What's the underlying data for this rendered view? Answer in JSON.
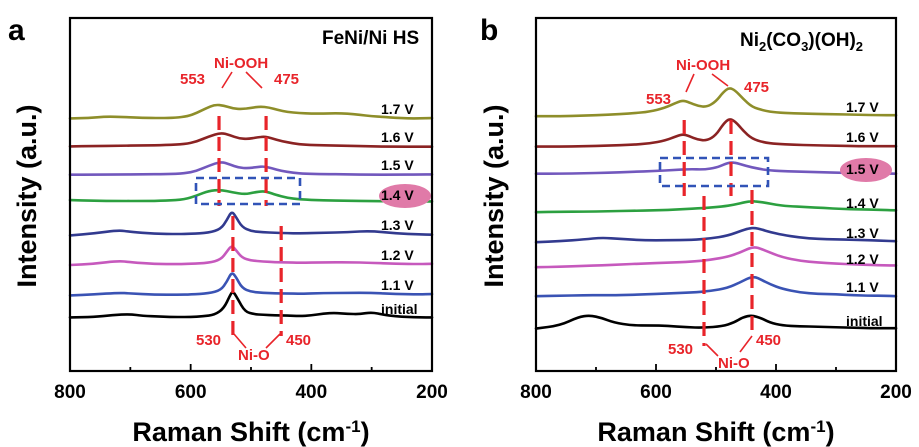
{
  "chart_data": [
    {
      "type": "line",
      "panel_label": "a",
      "title": "FeNi/Ni HS",
      "xlabel": "Raman Shift (cm",
      "xlabel_sup": "-1",
      "xlabel_end": ")",
      "ylabel": "Intensity (a.u.)",
      "xlim": [
        800,
        200
      ],
      "xticks": [
        800,
        600,
        400,
        200
      ],
      "series": [
        {
          "name": "initial",
          "color": "#000000",
          "x": [
            800,
            760,
            730,
            700,
            680,
            650,
            620,
            600,
            580,
            560,
            545,
            535,
            530,
            522,
            510,
            495,
            480,
            460,
            440,
            420,
            400,
            380,
            360,
            340,
            320,
            300,
            280,
            260,
            240,
            220,
            200
          ],
          "y": [
            0.2,
            0.3,
            0.9,
            1.2,
            0.7,
            0.4,
            0.3,
            0.3,
            0.5,
            1.0,
            3.0,
            7.0,
            8.5,
            6.0,
            2.0,
            1.2,
            1.0,
            0.8,
            0.8,
            0.6,
            0.8,
            1.4,
            1.6,
            1.3,
            1.2,
            1.8,
            1.0,
            0.5,
            0.3,
            0.2,
            0.2
          ]
        },
        {
          "name": "1.1 V",
          "color": "#3a53b4",
          "x": [
            800,
            760,
            720,
            700,
            660,
            620,
            600,
            570,
            550,
            540,
            532,
            525,
            515,
            500,
            480,
            460,
            440,
            420,
            380,
            340,
            300,
            260,
            220,
            200
          ],
          "y": [
            0.2,
            0.5,
            1.0,
            0.8,
            0.4,
            0.4,
            0.5,
            0.8,
            1.8,
            4.5,
            7.5,
            6.0,
            2.5,
            1.3,
            1.0,
            0.8,
            0.8,
            0.7,
            0.9,
            1.0,
            1.0,
            0.6,
            0.5,
            0.6
          ]
        },
        {
          "name": "1.2 V",
          "color": "#c659bd",
          "x": [
            800,
            760,
            720,
            700,
            660,
            620,
            600,
            570,
            550,
            540,
            532,
            525,
            515,
            500,
            480,
            460,
            440,
            420,
            380,
            340,
            300,
            260,
            220,
            200
          ],
          "y": [
            0.3,
            0.7,
            1.6,
            1.2,
            0.6,
            0.6,
            0.7,
            1.0,
            2.0,
            4.5,
            6.5,
            5.0,
            2.6,
            1.7,
            1.4,
            1.2,
            1.1,
            1.0,
            1.1,
            1.2,
            1.0,
            0.7,
            0.6,
            0.7
          ]
        },
        {
          "name": "1.3 V",
          "color": "#323a8f",
          "x": [
            800,
            760,
            720,
            700,
            660,
            620,
            600,
            570,
            550,
            540,
            532,
            525,
            515,
            500,
            480,
            460,
            440,
            420,
            380,
            340,
            300,
            260,
            220,
            200
          ],
          "y": [
            0.2,
            0.8,
            1.8,
            1.3,
            0.7,
            0.6,
            0.7,
            1.0,
            2.2,
            5.0,
            7.8,
            6.0,
            2.8,
            1.5,
            1.2,
            1.0,
            0.9,
            0.8,
            1.0,
            1.2,
            1.6,
            0.8,
            0.5,
            0.4
          ]
        },
        {
          "name": "1.4 V",
          "color": "#2ca040",
          "x": [
            800,
            760,
            720,
            680,
            640,
            610,
            590,
            570,
            550,
            530,
            510,
            495,
            480,
            470,
            460,
            440,
            420,
            380,
            340,
            300,
            260,
            220,
            200
          ],
          "y": [
            0.6,
            0.4,
            0.3,
            0.3,
            0.4,
            0.8,
            2.0,
            3.5,
            3.8,
            3.0,
            2.4,
            3.0,
            3.4,
            3.0,
            2.3,
            1.3,
            0.8,
            0.5,
            0.4,
            0.3,
            0.2,
            0.2,
            0.2
          ]
        },
        {
          "name": "1.5 V",
          "color": "#7258bd",
          "x": [
            800,
            760,
            720,
            680,
            640,
            610,
            590,
            570,
            550,
            535,
            520,
            505,
            490,
            478,
            465,
            450,
            430,
            410,
            380,
            340,
            300,
            260,
            220,
            200
          ],
          "y": [
            0.4,
            0.4,
            0.5,
            0.5,
            0.6,
            0.8,
            1.6,
            3.2,
            4.5,
            3.6,
            2.6,
            2.4,
            2.8,
            3.0,
            2.4,
            1.6,
            1.0,
            0.7,
            0.6,
            0.5,
            0.4,
            0.4,
            0.5,
            0.5
          ]
        },
        {
          "name": "1.6 V",
          "color": "#8b2323",
          "x": [
            800,
            760,
            720,
            680,
            640,
            610,
            590,
            570,
            550,
            535,
            520,
            505,
            490,
            478,
            465,
            450,
            430,
            410,
            380,
            340,
            300,
            260,
            220,
            200
          ],
          "y": [
            0.5,
            0.6,
            0.7,
            0.8,
            0.9,
            1.2,
            2.0,
            3.6,
            4.8,
            4.0,
            3.0,
            2.8,
            3.3,
            3.6,
            3.0,
            2.2,
            1.4,
            1.0,
            0.8,
            0.7,
            0.5,
            0.4,
            0.4,
            0.4
          ]
        },
        {
          "name": "1.7 V",
          "color": "#8e8e2a",
          "x": [
            800,
            770,
            740,
            710,
            680,
            650,
            625,
            605,
            590,
            575,
            560,
            545,
            530,
            515,
            500,
            485,
            470,
            455,
            440,
            420,
            400,
            380,
            360,
            340,
            320,
            300,
            280,
            260,
            240,
            220,
            200
          ],
          "y": [
            0.5,
            0.6,
            1.1,
            0.9,
            0.7,
            0.6,
            0.7,
            1.2,
            2.2,
            3.6,
            4.8,
            4.5,
            3.6,
            3.4,
            3.8,
            4.2,
            3.9,
            3.1,
            2.5,
            2.2,
            2.0,
            2.0,
            2.1,
            2.0,
            1.6,
            1.2,
            0.9,
            0.7,
            0.5,
            0.5,
            0.6
          ]
        }
      ],
      "annotations": {
        "peak_top_label": "Ni-OOH",
        "peak_top_left": "553",
        "peak_top_right": "475",
        "peak_bottom_label": "Ni-O",
        "peak_bottom_left": "530",
        "peak_bottom_right": "450",
        "highlight": "1.4 V"
      }
    },
    {
      "type": "line",
      "panel_label": "b",
      "title_main": "Ni",
      "title_sub1": "2",
      "title_mid": "(CO",
      "title_sub2": "3",
      "title_mid2": ")(OH)",
      "title_sub3": "2",
      "xlabel": "Raman Shift (cm",
      "xlabel_sup": "-1",
      "xlabel_end": ")",
      "ylabel": "Intensity (a.u.)",
      "xlim": [
        800,
        200
      ],
      "xticks": [
        800,
        600,
        400,
        200
      ],
      "series": [
        {
          "name": "initial",
          "color": "#000000",
          "x": [
            800,
            760,
            730,
            710,
            690,
            670,
            640,
            610,
            580,
            550,
            520,
            490,
            470,
            455,
            440,
            425,
            410,
            390,
            360,
            330,
            300,
            270,
            240,
            220,
            200
          ],
          "y": [
            0.3,
            1.0,
            2.8,
            3.2,
            2.6,
            1.6,
            1.0,
            1.0,
            0.9,
            0.6,
            0.5,
            0.8,
            1.6,
            2.8,
            3.2,
            2.6,
            1.6,
            1.0,
            0.8,
            0.7,
            0.6,
            0.5,
            0.4,
            0.4,
            0.4
          ]
        },
        {
          "name": "1.1 V",
          "color": "#3a53b4",
          "x": [
            800,
            760,
            720,
            690,
            660,
            620,
            580,
            540,
            510,
            480,
            460,
            445,
            435,
            425,
            410,
            390,
            360,
            330,
            300,
            270,
            240,
            220,
            200
          ],
          "y": [
            0.4,
            0.5,
            0.6,
            0.6,
            0.6,
            0.8,
            1.0,
            1.2,
            1.5,
            2.2,
            3.4,
            4.4,
            4.6,
            4.0,
            3.0,
            2.0,
            1.2,
            0.9,
            0.8,
            0.6,
            0.5,
            0.5,
            0.4
          ]
        },
        {
          "name": "1.2 V",
          "color": "#c659bd",
          "x": [
            800,
            760,
            720,
            690,
            660,
            620,
            580,
            540,
            510,
            480,
            460,
            445,
            435,
            425,
            410,
            390,
            360,
            330,
            300,
            270,
            240,
            220,
            200
          ],
          "y": [
            0.6,
            0.7,
            0.9,
            1.0,
            1.2,
            1.4,
            1.6,
            1.8,
            2.2,
            2.9,
            3.8,
            4.7,
            5.0,
            4.6,
            3.8,
            2.8,
            2.0,
            1.6,
            1.4,
            1.2,
            1.1,
            1.0,
            1.0
          ]
        },
        {
          "name": "1.3 V",
          "color": "#323a8f",
          "x": [
            800,
            760,
            720,
            690,
            660,
            620,
            580,
            540,
            510,
            480,
            460,
            445,
            435,
            425,
            410,
            390,
            360,
            330,
            300,
            270,
            240,
            220,
            200
          ],
          "y": [
            0.4,
            0.6,
            1.0,
            1.4,
            1.1,
            0.8,
            0.8,
            0.9,
            1.2,
            1.8,
            2.8,
            3.4,
            3.5,
            3.2,
            2.6,
            2.0,
            1.4,
            1.1,
            1.0,
            0.9,
            0.8,
            0.7,
            0.6
          ]
        },
        {
          "name": "1.4 V",
          "color": "#2ca040",
          "x": [
            800,
            760,
            720,
            680,
            640,
            600,
            560,
            520,
            490,
            470,
            450,
            440,
            430,
            415,
            400,
            380,
            350,
            320,
            290,
            260,
            230,
            200
          ],
          "y": [
            0.4,
            0.5,
            0.5,
            0.6,
            0.7,
            0.8,
            1.0,
            1.3,
            1.6,
            2.0,
            2.6,
            2.8,
            2.7,
            2.4,
            2.0,
            1.7,
            1.5,
            1.3,
            1.1,
            1.0,
            0.9,
            0.8
          ]
        },
        {
          "name": "1.5 V",
          "color": "#7258bd",
          "x": [
            800,
            760,
            720,
            680,
            640,
            600,
            570,
            545,
            520,
            500,
            485,
            475,
            465,
            450,
            430,
            410,
            380,
            350,
            320,
            290,
            260,
            230,
            200
          ],
          "y": [
            0.5,
            0.5,
            0.6,
            0.7,
            0.9,
            1.1,
            1.3,
            1.5,
            1.4,
            1.8,
            2.6,
            3.0,
            2.8,
            2.2,
            1.6,
            1.2,
            1.0,
            0.9,
            0.8,
            0.7,
            0.6,
            0.6,
            0.5
          ]
        },
        {
          "name": "1.6 V",
          "color": "#8b2323",
          "x": [
            800,
            760,
            720,
            680,
            640,
            610,
            585,
            565,
            555,
            545,
            530,
            515,
            500,
            488,
            478,
            468,
            455,
            440,
            420,
            400,
            370,
            340,
            300,
            260,
            230,
            200
          ],
          "y": [
            0.3,
            0.3,
            0.4,
            0.5,
            0.7,
            1.0,
            1.6,
            2.6,
            3.0,
            2.6,
            1.8,
            1.6,
            2.8,
            5.2,
            6.4,
            5.8,
            3.8,
            2.0,
            1.2,
            0.9,
            0.7,
            0.6,
            0.5,
            0.4,
            0.4,
            0.4
          ]
        },
        {
          "name": "1.7 V",
          "color": "#8e8e2a",
          "x": [
            800,
            760,
            720,
            680,
            640,
            610,
            585,
            565,
            555,
            545,
            530,
            515,
            500,
            488,
            478,
            468,
            455,
            440,
            420,
            400,
            370,
            340,
            300,
            260,
            230,
            200
          ],
          "y": [
            0.4,
            0.4,
            0.5,
            0.7,
            1.0,
            1.4,
            2.2,
            3.4,
            3.8,
            3.4,
            2.6,
            2.4,
            3.6,
            5.6,
            6.6,
            6.0,
            4.2,
            2.4,
            1.6,
            1.2,
            1.0,
            0.9,
            0.8,
            0.7,
            0.6,
            0.6
          ]
        }
      ],
      "annotations": {
        "peak_top_label": "Ni-OOH",
        "peak_top_left": "553",
        "peak_top_right": "475",
        "peak_bottom_label": "Ni-O",
        "peak_bottom_left": "530",
        "peak_bottom_right": "450",
        "highlight": "1.5 V"
      }
    }
  ],
  "colors": {
    "marker": "#e8242a",
    "box": "#3153b7",
    "highlight": "#e07aa8"
  }
}
